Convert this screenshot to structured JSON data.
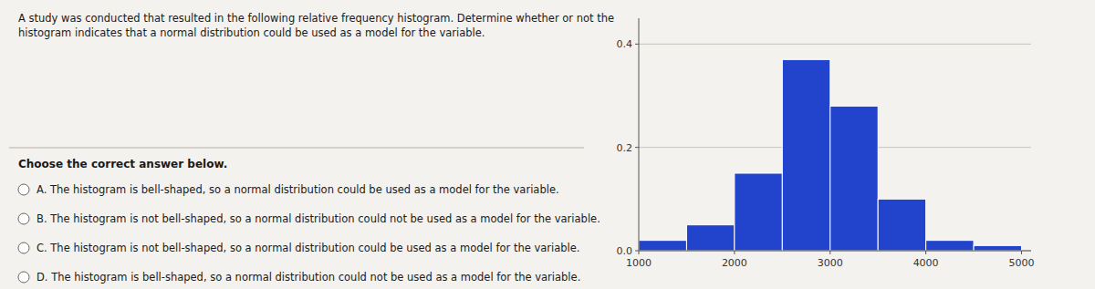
{
  "chart_data": {
    "type": "histogram",
    "title": "A study was conducted that resulted in the following relative frequency histogram. Determine whether or not the\nhistogram indicates that a normal distribution could be used as a model for the variable.",
    "subtitle": "Choose the correct answer below.",
    "annotations": [
      "A. The histogram is bell-shaped, so a normal distribution could be used as a model for the variable.",
      "B. The histogram is not bell-shaped, so a normal distribution could not be used as a model for the variable.",
      "C. The histogram is not bell-shaped, so a normal distribution could be used as a model for the variable.",
      "D. The histogram is bell-shaped, so a normal distribution could not be used as a model for the variable."
    ],
    "bins": [
      1000,
      1500,
      2000,
      2500,
      3000,
      3500,
      4000,
      4500,
      5000
    ],
    "values": [
      0.02,
      0.05,
      0.15,
      0.37,
      0.28,
      0.1,
      0.02,
      0.01
    ],
    "color": "#2244CC",
    "xlim": [
      1000,
      5100
    ],
    "xticks": [
      1000,
      2000,
      3000,
      4000,
      5000
    ],
    "ylim": [
      0,
      0.45
    ],
    "yticks": [
      {
        "value": 0,
        "label": "0.0"
      },
      {
        "value": 0.2,
        "label": "0.2"
      },
      {
        "value": 0.4,
        "label": "0.4"
      }
    ],
    "grid": true
  }
}
